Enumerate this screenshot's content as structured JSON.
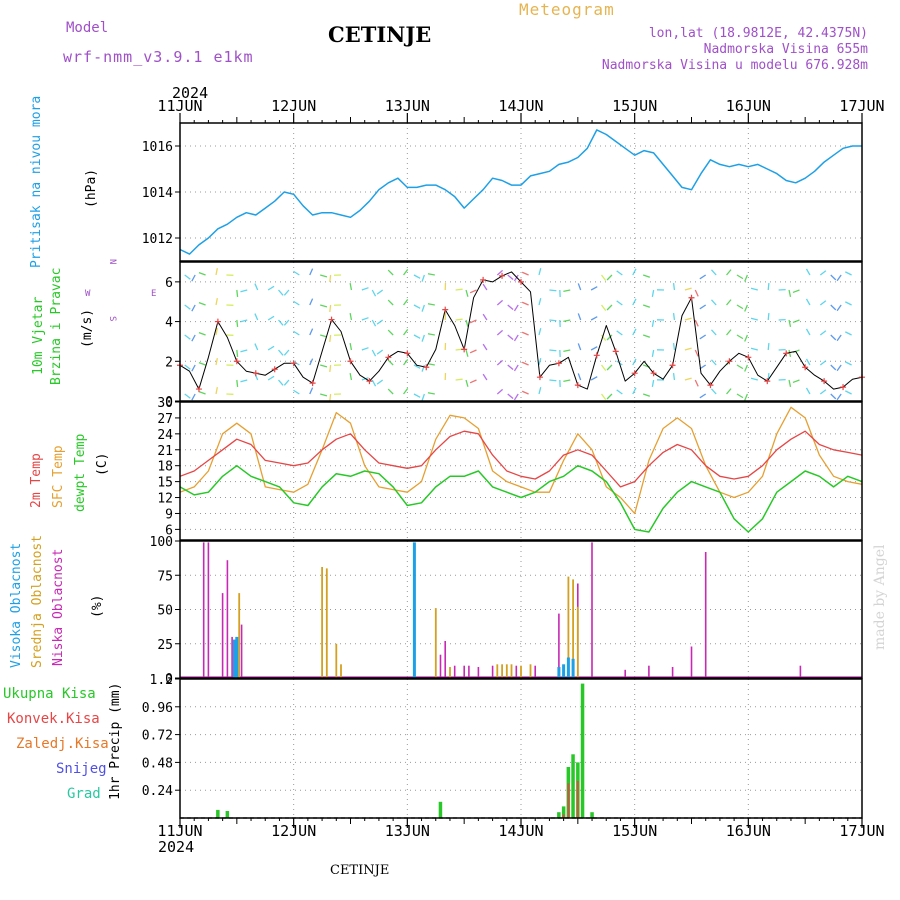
{
  "header": {
    "model_label": "Model",
    "model_name": "wrf-nmm_v3.9.1 e1km",
    "station_title": "CETINJE",
    "product_title": "Meteogram",
    "lonlat": "lon,lat (18.9812E, 42.4375N)",
    "elevation": "Nadmorska Visina 655m",
    "elevation_model": "Nadmorska Visina u modelu 676.928m",
    "year_top": "2024",
    "year_bottom": "2024",
    "footer_station": "CETINJE",
    "watermark": "made by Angel"
  },
  "colors": {
    "pressure": "#1ea0e6",
    "temp2m": "#e64646",
    "sfc": "#e6a032",
    "dewpt": "#28c828",
    "high_cloud": "#1ea0e6",
    "mid_cloud": "#d4a020",
    "low_cloud": "#c828b4",
    "total_precip": "#28c828",
    "conv_precip": "#e64646",
    "frozen_precip": "#e67828",
    "snow": "#5050e6",
    "graupel": "#28c8a0",
    "wind_line": "#000000",
    "wind_marker": "#e64646"
  },
  "x_axis": {
    "ticks": [
      "11JUN",
      "12JUN",
      "13JUN",
      "14JUN",
      "15JUN",
      "16JUN",
      "17JUN"
    ]
  },
  "panel_labels": {
    "pressure_name": "Pritisak na nivou mora",
    "pressure_unit": "(hPa)",
    "wind_name1": "10m Vjetar",
    "wind_name2": "Brzina i Pravac",
    "wind_unit": "(m/s)",
    "compass_n": "N",
    "compass_s": "S",
    "compass_w": "W",
    "compass_e": "E",
    "temp_name1": "2m Temp",
    "temp_name2": "SFC Temp",
    "temp_name3": "dewpt Temp",
    "temp_unit": "(C)",
    "cloud_name1": "Visoka Oblacnost",
    "cloud_name2": "Srednja Oblacnost",
    "cloud_name3": "Niska Oblacnost",
    "cloud_unit": "(%)",
    "precip_unit": "1hr Precip (mm)",
    "legend_total": "Ukupna Kisa",
    "legend_conv": "Konvek.Kisa",
    "legend_frozen": "Zaledj.Kisa",
    "legend_snow": "Snijeg",
    "legend_graupel": "Grad"
  },
  "chart_data": [
    {
      "type": "line",
      "name": "pressure",
      "yticks": [
        "1012",
        "1014",
        "1016"
      ],
      "ylim": [
        1011,
        1017
      ],
      "grid": true,
      "series": [
        {
          "x": [
            0,
            2,
            4,
            6,
            8,
            10,
            12,
            14,
            16,
            18,
            20,
            22,
            24,
            26,
            28,
            30,
            32,
            34,
            36,
            38,
            40,
            42,
            44,
            46,
            48,
            50,
            52,
            54,
            56,
            58,
            60,
            62,
            64,
            66,
            68,
            70,
            72,
            74,
            76,
            78,
            80,
            82,
            84,
            86,
            88,
            90,
            92,
            94,
            96,
            98,
            100,
            102,
            104,
            106,
            108,
            110,
            112,
            114,
            116,
            118,
            120,
            122,
            124,
            126,
            128,
            130,
            132,
            134,
            136,
            138,
            140,
            142,
            144
          ],
          "values": [
            1011.5,
            1011.3,
            1011.7,
            1012.0,
            1012.4,
            1012.6,
            1012.9,
            1013.1,
            1013.0,
            1013.3,
            1013.6,
            1014.0,
            1013.9,
            1013.4,
            1013.0,
            1013.1,
            1013.1,
            1013.0,
            1012.9,
            1013.2,
            1013.6,
            1014.1,
            1014.4,
            1014.6,
            1014.2,
            1014.2,
            1014.3,
            1014.3,
            1014.1,
            1013.8,
            1013.3,
            1013.7,
            1014.1,
            1014.6,
            1014.5,
            1014.3,
            1014.3,
            1014.7,
            1014.8,
            1014.9,
            1015.2,
            1015.3,
            1015.5,
            1015.9,
            1016.7,
            1016.5,
            1016.2,
            1015.9,
            1015.6,
            1015.8,
            1015.7,
            1015.2,
            1014.7,
            1014.2,
            1014.1,
            1014.8,
            1015.4,
            1015.2,
            1015.1,
            1015.2,
            1015.1,
            1015.2,
            1015.0,
            1014.8,
            1014.5,
            1014.4,
            1014.6,
            1014.9,
            1015.3,
            1015.6,
            1015.9,
            1016.0,
            1016.0
          ]
        }
      ]
    },
    {
      "type": "line",
      "name": "wind10m",
      "yticks": [
        "0",
        "2",
        "4",
        "6"
      ],
      "ylim": [
        0,
        7
      ],
      "grid": true,
      "series": [
        {
          "x": [
            0,
            2,
            4,
            6,
            8,
            10,
            12,
            14,
            16,
            18,
            20,
            22,
            24,
            26,
            28,
            30,
            32,
            34,
            36,
            38,
            40,
            42,
            44,
            46,
            48,
            50,
            52,
            54,
            56,
            58,
            60,
            62,
            64,
            66,
            68,
            70,
            72,
            74,
            76,
            78,
            80,
            82,
            84,
            86,
            88,
            90,
            92,
            94,
            96,
            98,
            100,
            102,
            104,
            106,
            108,
            110,
            112,
            114,
            116,
            118,
            120,
            122,
            124,
            126,
            128,
            130,
            132,
            134,
            136,
            138,
            140,
            142,
            144
          ],
          "values": [
            1.8,
            1.5,
            0.6,
            2.2,
            4.0,
            3.2,
            2.0,
            1.5,
            1.4,
            1.3,
            1.6,
            1.9,
            1.9,
            1.2,
            0.9,
            2.5,
            4.1,
            3.5,
            2.0,
            1.3,
            1.0,
            1.5,
            2.2,
            2.5,
            2.4,
            1.8,
            1.7,
            2.6,
            4.6,
            3.8,
            2.6,
            5.2,
            6.1,
            6.0,
            6.3,
            6.5,
            6.0,
            5.5,
            1.2,
            1.8,
            1.9,
            2.2,
            0.8,
            0.6,
            2.3,
            3.8,
            2.5,
            1.0,
            1.4,
            2.0,
            1.4,
            1.1,
            1.8,
            4.3,
            5.2,
            1.4,
            0.8,
            1.5,
            2.0,
            2.4,
            2.2,
            1.3,
            1.0,
            1.7,
            2.4,
            2.5,
            1.7,
            1.3,
            1.0,
            0.6,
            0.7,
            1.1,
            1.2
          ]
        }
      ]
    },
    {
      "type": "line",
      "name": "temperature",
      "yticks": [
        "6",
        "9",
        "12",
        "15",
        "18",
        "21",
        "24",
        "27",
        "30"
      ],
      "ylim": [
        4,
        30
      ],
      "grid": true,
      "series": [
        {
          "name": "2m Temp",
          "x": [
            0,
            3,
            6,
            9,
            12,
            15,
            18,
            21,
            24,
            27,
            30,
            33,
            36,
            39,
            42,
            45,
            48,
            51,
            54,
            57,
            60,
            63,
            66,
            69,
            72,
            75,
            78,
            81,
            84,
            87,
            90,
            93,
            96,
            99,
            102,
            105,
            108,
            111,
            114,
            117,
            120,
            123,
            126,
            129,
            132,
            135,
            138,
            141,
            144
          ],
          "values": [
            16,
            17,
            19,
            21,
            23,
            22,
            19,
            18.5,
            18,
            18.5,
            21,
            23,
            24,
            21,
            18.5,
            18,
            17.5,
            18,
            21,
            23.5,
            24.5,
            24,
            20,
            17,
            16,
            15.5,
            17,
            20,
            21,
            20,
            17,
            14,
            15,
            18,
            20.5,
            22,
            21,
            18,
            16,
            15.5,
            16,
            18,
            21,
            23,
            24.5,
            22,
            21,
            20.5,
            20
          ]
        },
        {
          "name": "SFC Temp",
          "x": [
            0,
            3,
            6,
            9,
            12,
            15,
            18,
            21,
            24,
            27,
            30,
            33,
            36,
            39,
            42,
            45,
            48,
            51,
            54,
            57,
            60,
            63,
            66,
            69,
            72,
            75,
            78,
            81,
            84,
            87,
            90,
            93,
            96,
            99,
            102,
            105,
            108,
            111,
            114,
            117,
            120,
            123,
            126,
            129,
            132,
            135,
            138,
            141,
            144
          ],
          "values": [
            13,
            14,
            17,
            24,
            26,
            24,
            14,
            13.5,
            13,
            14.5,
            21,
            28,
            26,
            18,
            14,
            13.5,
            13,
            15,
            23,
            27.5,
            27,
            25,
            17,
            15,
            14,
            13,
            13,
            19,
            24,
            21,
            14,
            12,
            9,
            19,
            25,
            27,
            25,
            18,
            13,
            12,
            13,
            16,
            24,
            29,
            27,
            20,
            16,
            15,
            14.5
          ]
        },
        {
          "name": "dewpt Temp",
          "x": [
            0,
            3,
            6,
            9,
            12,
            15,
            18,
            21,
            24,
            27,
            30,
            33,
            36,
            39,
            42,
            45,
            48,
            51,
            54,
            57,
            60,
            63,
            66,
            69,
            72,
            75,
            78,
            81,
            84,
            87,
            90,
            93,
            96,
            99,
            102,
            105,
            108,
            111,
            114,
            117,
            120,
            123,
            126,
            129,
            132,
            135,
            138,
            141,
            144
          ],
          "values": [
            14,
            12.5,
            13,
            16,
            18,
            16,
            15,
            14,
            11,
            10.5,
            14,
            16.5,
            16,
            17,
            16.5,
            14,
            10.5,
            11,
            14,
            16,
            16,
            17,
            14,
            13,
            12,
            13,
            15,
            16,
            18,
            17,
            15,
            11,
            6,
            5.5,
            10,
            13,
            15,
            14,
            13,
            8,
            5.5,
            8,
            13,
            15,
            17,
            16,
            14,
            16,
            15
          ]
        }
      ]
    },
    {
      "type": "bar",
      "name": "cloud_cover",
      "yticks": [
        "0",
        "25",
        "50",
        "75",
        "100"
      ],
      "ylim": [
        0,
        100
      ],
      "grid": true,
      "series": [
        {
          "name": "Visoka Oblacnost",
          "x": [
            11.5,
            12,
            49.5,
            80,
            81,
            82,
            83
          ],
          "values": [
            28,
            30,
            99,
            8,
            10,
            15,
            14
          ]
        },
        {
          "name": "Srednja Oblacnost",
          "x": [
            12.5,
            30,
            31,
            33,
            34,
            54,
            57,
            67,
            68,
            69,
            70,
            72,
            74,
            82,
            83,
            84
          ],
          "values": [
            62,
            81,
            80,
            25,
            10,
            51,
            8,
            10,
            10,
            10,
            10,
            9,
            10,
            74,
            72,
            52
          ]
        },
        {
          "name": "Niska Oblacnost",
          "x": [
            5,
            6,
            9,
            10,
            11,
            13,
            55,
            56,
            58,
            60,
            61,
            63,
            66,
            71,
            75,
            80,
            81,
            82,
            84,
            87,
            94,
            99,
            104,
            108,
            111,
            131
          ],
          "values": [
            99,
            99,
            62,
            86,
            30,
            39,
            17,
            27,
            9,
            9,
            9,
            8,
            9,
            9,
            9,
            47,
            6,
            14,
            69,
            99,
            6,
            9,
            8,
            23,
            92,
            9
          ]
        }
      ]
    },
    {
      "type": "bar",
      "name": "precip_1hr",
      "yticks": [
        "0.24",
        "0.48",
        "0.72",
        "0.96",
        "1.2"
      ],
      "ylim": [
        0,
        1.2
      ],
      "grid": true,
      "series": [
        {
          "name": "Ukupna Kisa",
          "x": [
            8,
            10,
            55,
            80,
            81,
            82,
            83,
            84,
            85,
            87
          ],
          "values": [
            0.07,
            0.06,
            0.14,
            0.05,
            0.1,
            0.44,
            0.55,
            0.48,
            1.16,
            0.05
          ]
        },
        {
          "name": "Konvek.Kisa",
          "x": [
            81,
            82,
            84
          ],
          "values": [
            0.03,
            0.3,
            0.32
          ]
        }
      ]
    }
  ]
}
